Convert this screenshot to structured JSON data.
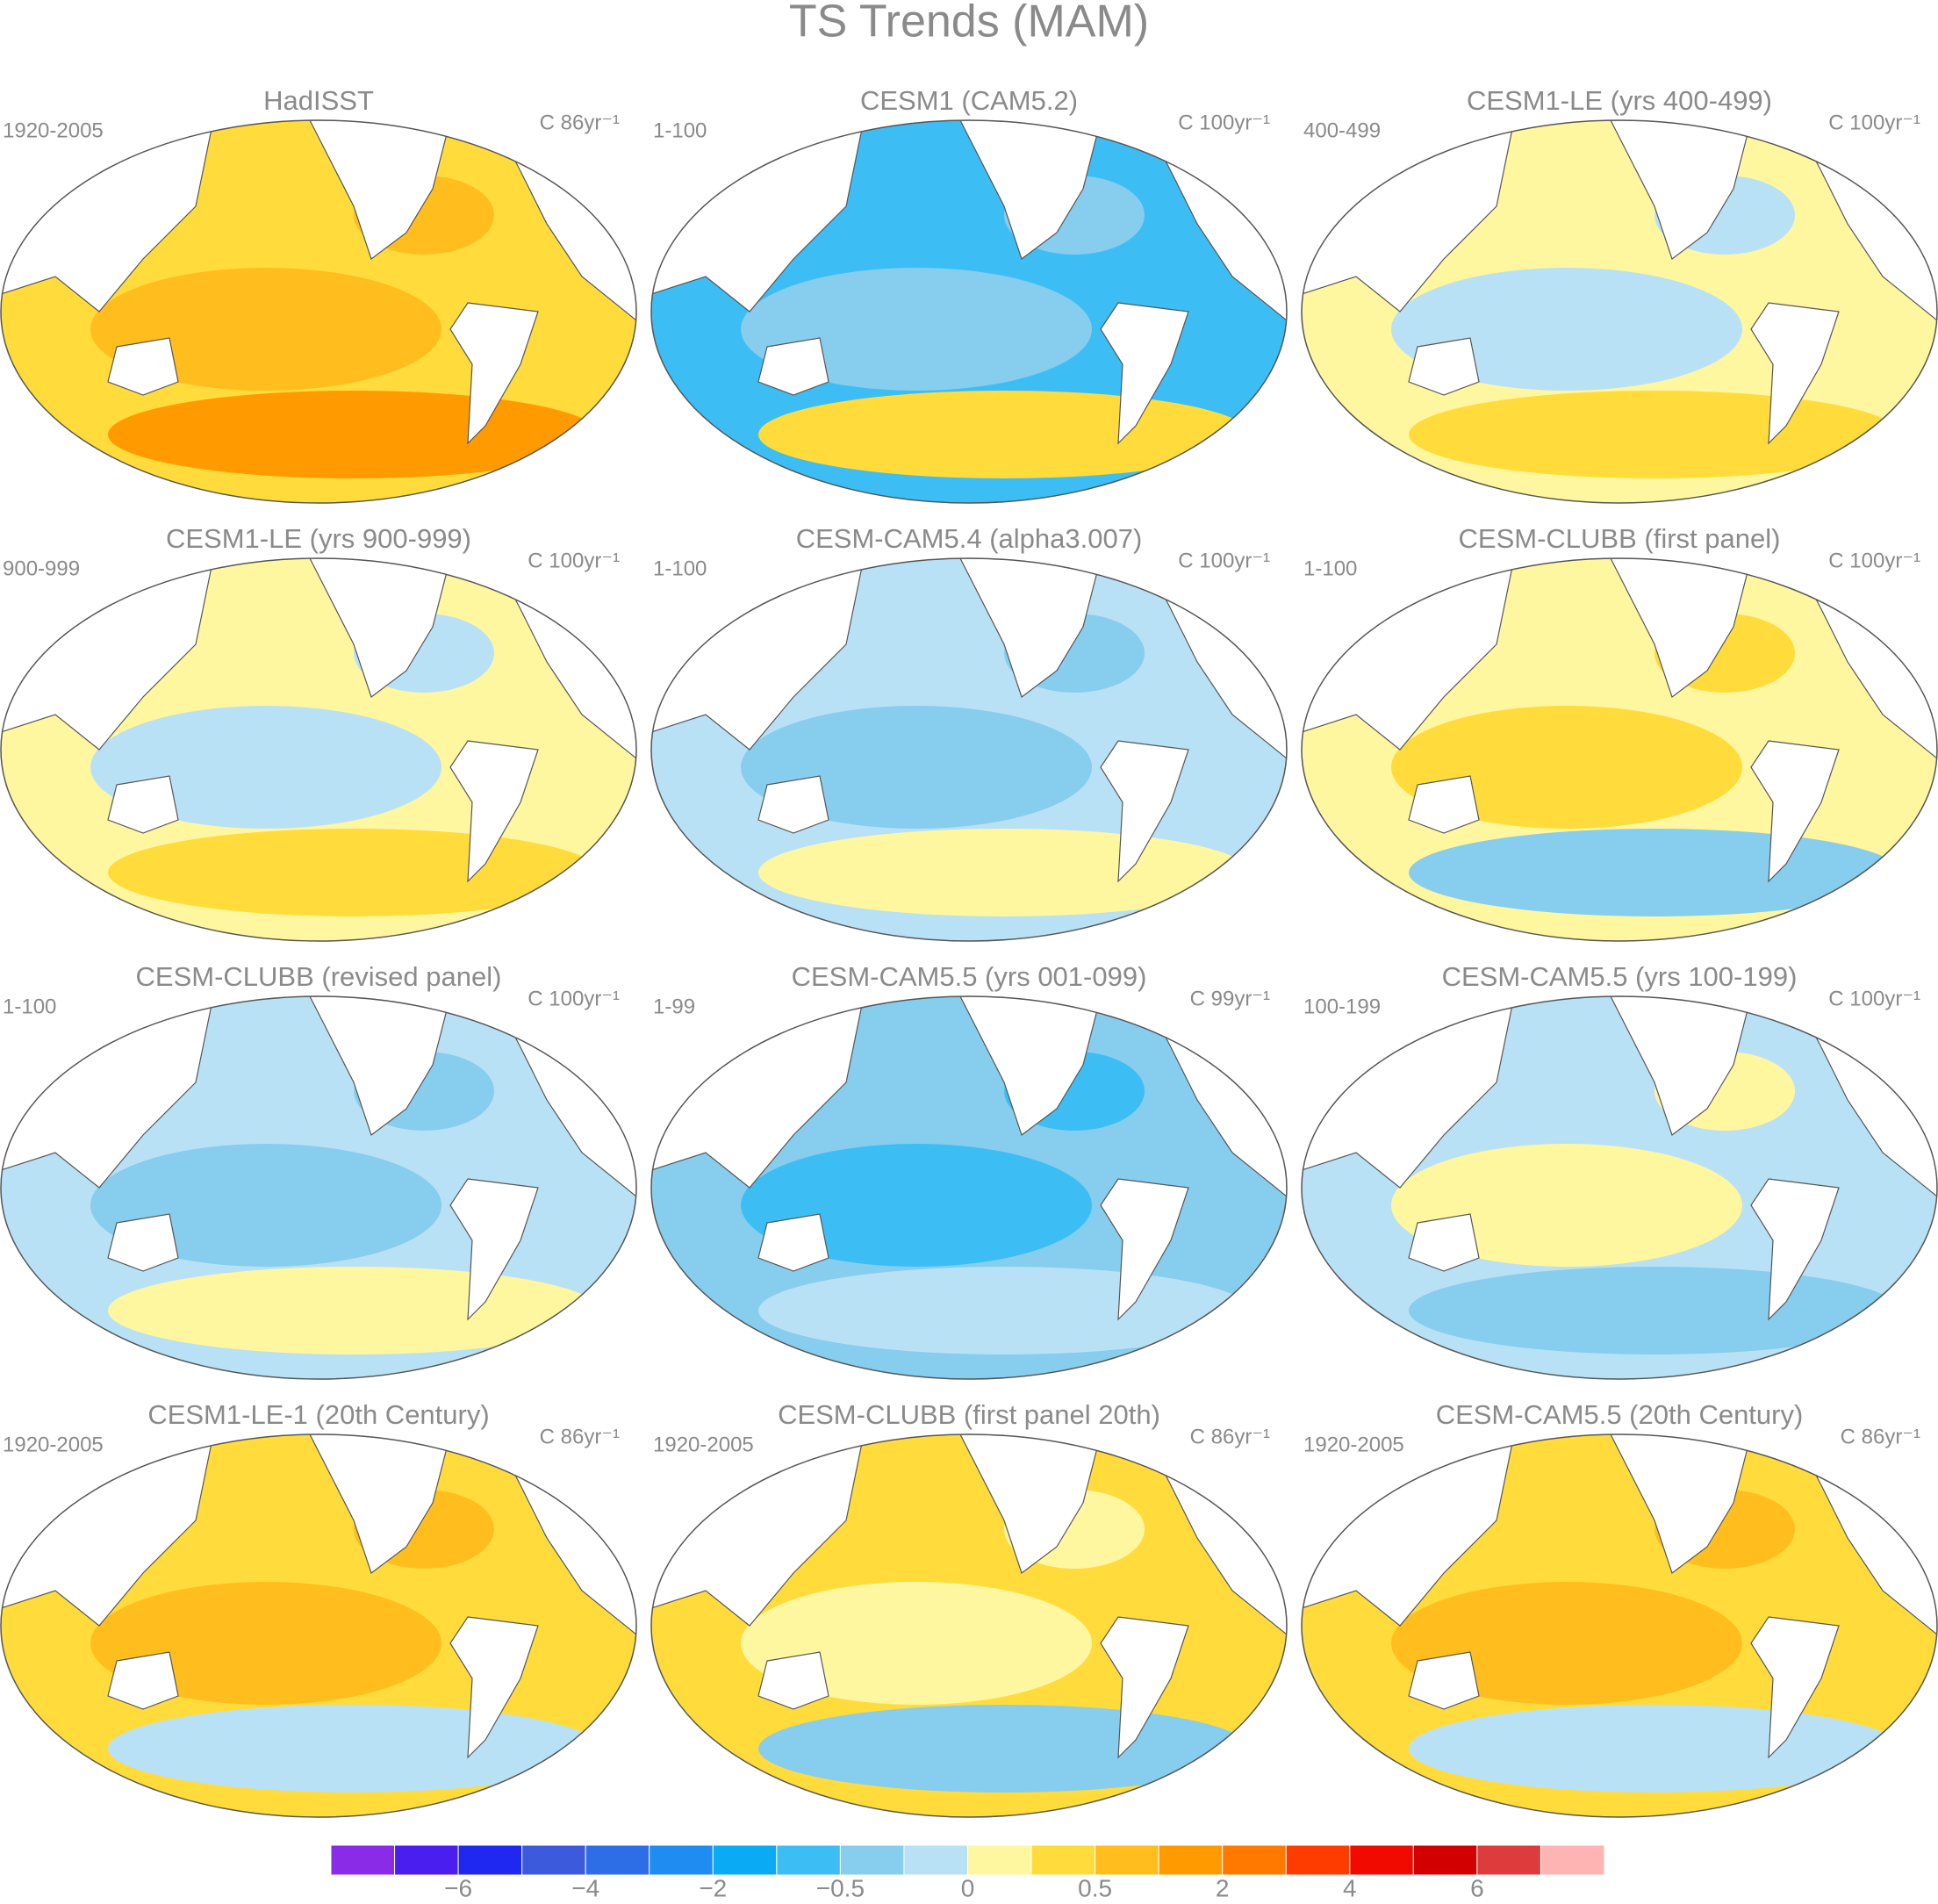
{
  "title": "TS Trends (MAM)",
  "panels": [
    {
      "title": "HadISST",
      "period": "1920-2005",
      "units": "C 86yr⁻¹"
    },
    {
      "title": "CESM1 (CAM5.2)",
      "period": "1-100",
      "units": "C 100yr⁻¹"
    },
    {
      "title": "CESM1-LE (yrs 400-499)",
      "period": "400-499",
      "units": "C 100yr⁻¹"
    },
    {
      "title": "CESM1-LE (yrs 900-999)",
      "period": "900-999",
      "units": "C 100yr⁻¹"
    },
    {
      "title": "CESM-CAM5.4 (alpha3.007)",
      "period": "1-100",
      "units": "C 100yr⁻¹"
    },
    {
      "title": "CESM-CLUBB (first panel)",
      "period": "1-100",
      "units": "C 100yr⁻¹"
    },
    {
      "title": "CESM-CLUBB (revised panel)",
      "period": "1-100",
      "units": "C 100yr⁻¹"
    },
    {
      "title": "CESM-CAM5.5 (yrs 001-099)",
      "period": "1-99",
      "units": "C 99yr⁻¹"
    },
    {
      "title": "CESM-CAM5.5 (yrs 100-199)",
      "period": "100-199",
      "units": "C 100yr⁻¹"
    },
    {
      "title": "CESM1-LE-1 (20th Century)",
      "period": "1920-2005",
      "units": "C 86yr⁻¹"
    },
    {
      "title": "CESM-CLUBB (first panel 20th)",
      "period": "1920-2005",
      "units": "C 86yr⁻¹"
    },
    {
      "title": "CESM-CAM5.5 (20th Century)",
      "period": "1920-2005",
      "units": "C 86yr⁻¹"
    }
  ],
  "colorbar": {
    "colors": [
      "#8a2be8",
      "#4b1ef0",
      "#1e28f0",
      "#3c5adc",
      "#2d6ee6",
      "#1e8cf0",
      "#0aaaf5",
      "#3cbef5",
      "#87cdee",
      "#b9e1f5",
      "#fff7a0",
      "#ffdc3c",
      "#ffbe1e",
      "#ff9b00",
      "#ff7800",
      "#ff3c00",
      "#f00a00",
      "#d20000",
      "#dc3c3c",
      "#ffb4b4"
    ],
    "labels": [
      "−6",
      "−4",
      "−2",
      "−0.5",
      "0",
      "0.5",
      "2",
      "4",
      "6"
    ]
  }
}
